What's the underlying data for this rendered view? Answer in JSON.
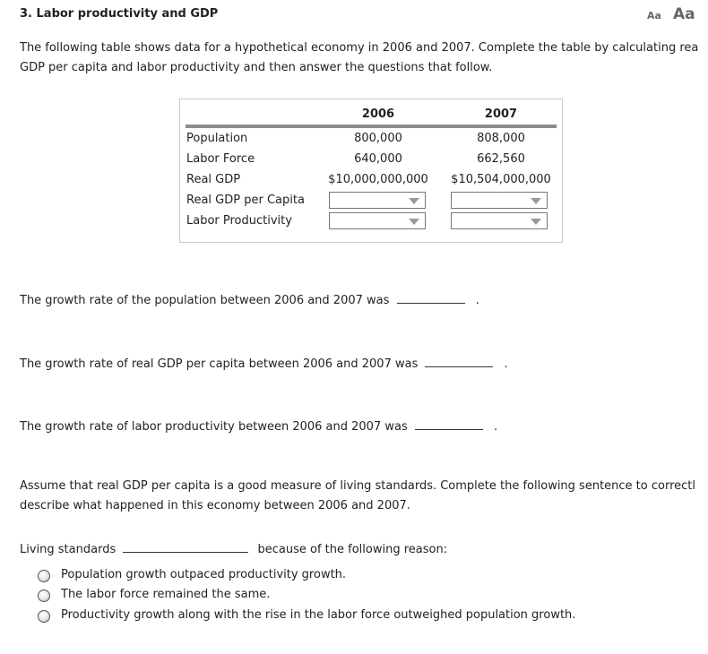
{
  "header": {
    "title": "3. Labor productivity and GDP",
    "font_small": "Aa",
    "font_large": "Aa"
  },
  "intro": {
    "line1": "The following table shows data for a hypothetical economy in 2006 and 2007. Complete the table by calculating rea",
    "line2": "GDP per capita and labor productivity and then answer the questions that follow."
  },
  "table": {
    "columns": [
      "2006",
      "2007"
    ],
    "rows": [
      {
        "label": "Population",
        "v2006": "800,000",
        "v2007": "808,000"
      },
      {
        "label": "Labor Force",
        "v2006": "640,000",
        "v2007": "662,560"
      },
      {
        "label": "Real GDP",
        "v2006": "$10,000,000,000",
        "v2007": "$10,504,000,000"
      },
      {
        "label": "Real GDP per Capita",
        "v2006": "",
        "v2007": ""
      },
      {
        "label": "Labor Productivity",
        "v2006": "",
        "v2007": ""
      }
    ]
  },
  "questions": {
    "q1": "The growth rate of the population between 2006 and 2007 was",
    "q2": "The growth rate of real GDP per capita between 2006 and 2007 was",
    "q3": "The growth rate of labor productivity between 2006 and 2007 was",
    "period": "."
  },
  "living": {
    "line1": "Assume that real GDP per capita is a good measure of living standards. Complete the following sentence to correctl",
    "line2": "describe what happened in this economy between 2006 and 2007.",
    "prefix": "Living standards",
    "suffix": "because of the following reason:",
    "options": [
      "Population growth outpaced productivity growth.",
      "The labor force remained the same.",
      "Productivity growth along with the rise in the labor force outweighed population growth."
    ]
  }
}
